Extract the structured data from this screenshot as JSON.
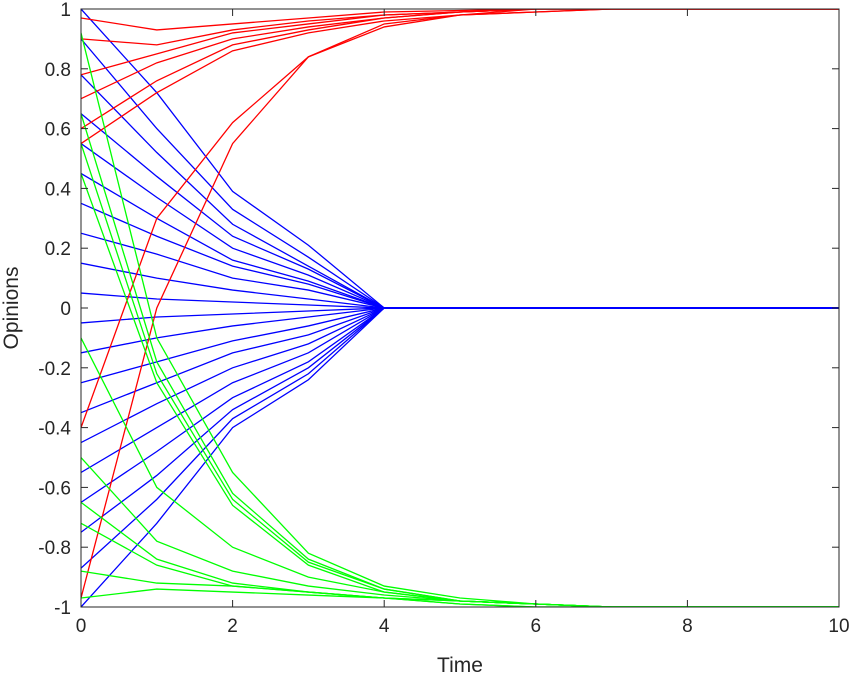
{
  "chart_data": {
    "type": "line",
    "xlabel": "Time",
    "ylabel": "Opinions",
    "xlim": [
      0,
      10
    ],
    "ylim": [
      -1,
      1
    ],
    "x": [
      0,
      1,
      2,
      3,
      4,
      5,
      6,
      7,
      8,
      9,
      10
    ],
    "xticks": [
      "0",
      "2",
      "4",
      "6",
      "8",
      "10"
    ],
    "yticks": [
      "-1",
      "-0.8",
      "-0.6",
      "-0.4",
      "-0.2",
      "0",
      "0.2",
      "0.4",
      "0.6",
      "0.8",
      "1"
    ],
    "grid": false,
    "legend": "none",
    "colors": {
      "converge_zero": "#0000ff",
      "converge_pos": "#ff0000",
      "converge_neg": "#00ff00"
    },
    "series": [
      {
        "group": "converge_zero",
        "values": [
          1.0,
          0.72,
          0.39,
          0.21,
          0.0,
          0.0,
          0.0,
          0.0,
          0.0,
          0.0,
          0.0
        ]
      },
      {
        "group": "converge_zero",
        "values": [
          0.9,
          0.6,
          0.33,
          0.17,
          0.0,
          0.0,
          0.0,
          0.0,
          0.0,
          0.0,
          0.0
        ]
      },
      {
        "group": "converge_zero",
        "values": [
          0.78,
          0.52,
          0.28,
          0.14,
          0.0,
          0.0,
          0.0,
          0.0,
          0.0,
          0.0,
          0.0
        ]
      },
      {
        "group": "converge_zero",
        "values": [
          0.65,
          0.44,
          0.24,
          0.13,
          0.0,
          0.0,
          0.0,
          0.0,
          0.0,
          0.0,
          0.0
        ]
      },
      {
        "group": "converge_zero",
        "values": [
          0.55,
          0.37,
          0.2,
          0.11,
          0.0,
          0.0,
          0.0,
          0.0,
          0.0,
          0.0,
          0.0
        ]
      },
      {
        "group": "converge_zero",
        "values": [
          0.45,
          0.3,
          0.16,
          0.09,
          0.0,
          0.0,
          0.0,
          0.0,
          0.0,
          0.0,
          0.0
        ]
      },
      {
        "group": "converge_zero",
        "values": [
          0.35,
          0.24,
          0.14,
          0.08,
          0.0,
          0.0,
          0.0,
          0.0,
          0.0,
          0.0,
          0.0
        ]
      },
      {
        "group": "converge_zero",
        "values": [
          0.25,
          0.18,
          0.1,
          0.06,
          0.0,
          0.0,
          0.0,
          0.0,
          0.0,
          0.0,
          0.0
        ]
      },
      {
        "group": "converge_zero",
        "values": [
          0.15,
          0.1,
          0.06,
          0.03,
          0.0,
          0.0,
          0.0,
          0.0,
          0.0,
          0.0,
          0.0
        ]
      },
      {
        "group": "converge_zero",
        "values": [
          0.05,
          0.03,
          0.02,
          0.01,
          0.0,
          0.0,
          0.0,
          0.0,
          0.0,
          0.0,
          0.0
        ]
      },
      {
        "group": "converge_zero",
        "values": [
          -0.05,
          -0.03,
          -0.02,
          -0.01,
          0.0,
          0.0,
          0.0,
          0.0,
          0.0,
          0.0,
          0.0
        ]
      },
      {
        "group": "converge_zero",
        "values": [
          -0.15,
          -0.1,
          -0.06,
          -0.03,
          0.0,
          0.0,
          0.0,
          0.0,
          0.0,
          0.0,
          0.0
        ]
      },
      {
        "group": "converge_zero",
        "values": [
          -0.25,
          -0.18,
          -0.11,
          -0.06,
          0.0,
          0.0,
          0.0,
          0.0,
          0.0,
          0.0,
          0.0
        ]
      },
      {
        "group": "converge_zero",
        "values": [
          -0.35,
          -0.25,
          -0.15,
          -0.09,
          0.0,
          0.0,
          0.0,
          0.0,
          0.0,
          0.0,
          0.0
        ]
      },
      {
        "group": "converge_zero",
        "values": [
          -0.45,
          -0.32,
          -0.2,
          -0.12,
          0.0,
          0.0,
          0.0,
          0.0,
          0.0,
          0.0,
          0.0
        ]
      },
      {
        "group": "converge_zero",
        "values": [
          -0.55,
          -0.4,
          -0.25,
          -0.15,
          0.0,
          0.0,
          0.0,
          0.0,
          0.0,
          0.0,
          0.0
        ]
      },
      {
        "group": "converge_zero",
        "values": [
          -0.65,
          -0.48,
          -0.3,
          -0.18,
          0.0,
          0.0,
          0.0,
          0.0,
          0.0,
          0.0,
          0.0
        ]
      },
      {
        "group": "converge_zero",
        "values": [
          -0.75,
          -0.56,
          -0.34,
          -0.2,
          0.0,
          0.0,
          0.0,
          0.0,
          0.0,
          0.0,
          0.0
        ]
      },
      {
        "group": "converge_zero",
        "values": [
          -0.87,
          -0.64,
          -0.37,
          -0.22,
          0.0,
          0.0,
          0.0,
          0.0,
          0.0,
          0.0,
          0.0
        ]
      },
      {
        "group": "converge_zero",
        "values": [
          -1.0,
          -0.72,
          -0.4,
          -0.24,
          0.0,
          0.0,
          0.0,
          0.0,
          0.0,
          0.0,
          0.0
        ]
      },
      {
        "group": "converge_pos",
        "values": [
          0.97,
          0.93,
          0.95,
          0.97,
          0.99,
          0.995,
          1.0,
          1.0,
          1.0,
          1.0,
          1.0
        ]
      },
      {
        "group": "converge_pos",
        "values": [
          0.9,
          0.88,
          0.93,
          0.96,
          0.98,
          0.99,
          1.0,
          1.0,
          1.0,
          1.0,
          1.0
        ]
      },
      {
        "group": "converge_pos",
        "values": [
          0.78,
          0.85,
          0.92,
          0.95,
          0.98,
          0.99,
          1.0,
          1.0,
          1.0,
          1.0,
          1.0
        ]
      },
      {
        "group": "converge_pos",
        "values": [
          0.7,
          0.82,
          0.9,
          0.94,
          0.97,
          0.99,
          1.0,
          1.0,
          1.0,
          1.0,
          1.0
        ]
      },
      {
        "group": "converge_pos",
        "values": [
          0.6,
          0.76,
          0.88,
          0.93,
          0.97,
          0.99,
          1.0,
          1.0,
          1.0,
          1.0,
          1.0
        ]
      },
      {
        "group": "converge_pos",
        "values": [
          0.55,
          0.72,
          0.86,
          0.92,
          0.96,
          0.98,
          1.0,
          1.0,
          1.0,
          1.0,
          1.0
        ]
      },
      {
        "group": "converge_pos",
        "values": [
          -0.4,
          0.3,
          0.62,
          0.84,
          0.95,
          0.98,
          0.99,
          1.0,
          1.0,
          1.0,
          1.0
        ]
      },
      {
        "group": "converge_pos",
        "values": [
          -0.97,
          0.0,
          0.55,
          0.84,
          0.94,
          0.98,
          0.99,
          1.0,
          1.0,
          1.0,
          1.0
        ]
      },
      {
        "group": "converge_neg",
        "values": [
          0.92,
          -0.1,
          -0.55,
          -0.82,
          -0.93,
          -0.97,
          -0.99,
          -1.0,
          -1.0,
          -1.0,
          -1.0
        ]
      },
      {
        "group": "converge_neg",
        "values": [
          0.65,
          -0.18,
          -0.62,
          -0.84,
          -0.94,
          -0.98,
          -0.99,
          -1.0,
          -1.0,
          -1.0,
          -1.0
        ]
      },
      {
        "group": "converge_neg",
        "values": [
          0.55,
          -0.22,
          -0.64,
          -0.85,
          -0.94,
          -0.98,
          -0.99,
          -1.0,
          -1.0,
          -1.0,
          -1.0
        ]
      },
      {
        "group": "converge_neg",
        "values": [
          0.45,
          -0.25,
          -0.66,
          -0.86,
          -0.95,
          -0.98,
          -0.99,
          -1.0,
          -1.0,
          -1.0,
          -1.0
        ]
      },
      {
        "group": "converge_neg",
        "values": [
          -0.1,
          -0.6,
          -0.8,
          -0.9,
          -0.95,
          -0.98,
          -0.99,
          -1.0,
          -1.0,
          -1.0,
          -1.0
        ]
      },
      {
        "group": "converge_neg",
        "values": [
          -0.5,
          -0.78,
          -0.88,
          -0.93,
          -0.96,
          -0.98,
          -0.99,
          -1.0,
          -1.0,
          -1.0,
          -1.0
        ]
      },
      {
        "group": "converge_neg",
        "values": [
          -0.65,
          -0.84,
          -0.92,
          -0.95,
          -0.97,
          -0.98,
          -0.99,
          -1.0,
          -1.0,
          -1.0,
          -1.0
        ]
      },
      {
        "group": "converge_neg",
        "values": [
          -0.72,
          -0.86,
          -0.93,
          -0.95,
          -0.97,
          -0.98,
          -0.99,
          -1.0,
          -1.0,
          -1.0,
          -1.0
        ]
      },
      {
        "group": "converge_neg",
        "values": [
          -0.88,
          -0.92,
          -0.93,
          -0.95,
          -0.97,
          -0.99,
          -1.0,
          -1.0,
          -1.0,
          -1.0,
          -1.0
        ]
      },
      {
        "group": "converge_neg",
        "values": [
          -0.97,
          -0.94,
          -0.95,
          -0.96,
          -0.97,
          -0.99,
          -1.0,
          -1.0,
          -1.0,
          -1.0,
          -1.0
        ]
      }
    ]
  }
}
